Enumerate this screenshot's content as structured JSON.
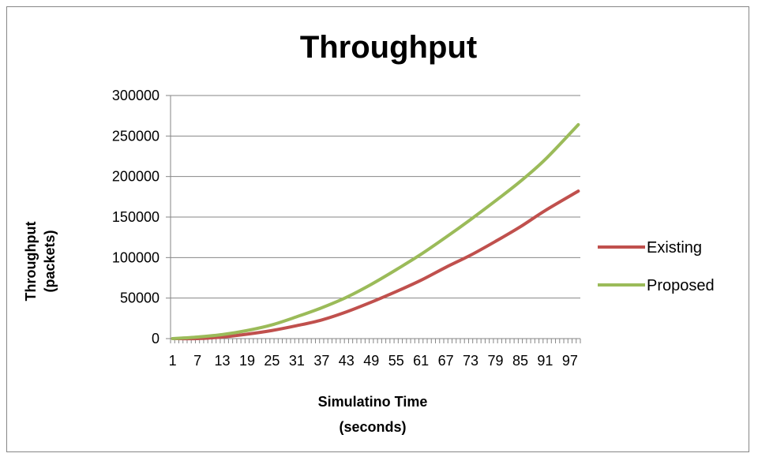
{
  "chart_data": {
    "type": "line",
    "title": "Throughput",
    "ylabel_lines": [
      "Throughput",
      "(packets)"
    ],
    "xlabel_lines": [
      "Simulatino Time",
      "(seconds)"
    ],
    "ylim": [
      0,
      300000
    ],
    "y_ticks": [
      0,
      50000,
      100000,
      150000,
      200000,
      250000,
      300000
    ],
    "x_range": [
      1,
      99
    ],
    "x_tick_labels": [
      1,
      7,
      13,
      19,
      25,
      31,
      37,
      43,
      49,
      55,
      61,
      67,
      73,
      79,
      85,
      91,
      97
    ],
    "legend_position": "right",
    "grid": "horizontal major gridlines",
    "series": [
      {
        "name": "Existing",
        "color": "#c0504d",
        "points": [
          [
            1,
            0
          ],
          [
            7,
            0
          ],
          [
            13,
            2000
          ],
          [
            19,
            5500
          ],
          [
            25,
            10000
          ],
          [
            31,
            16000
          ],
          [
            37,
            23000
          ],
          [
            43,
            33000
          ],
          [
            49,
            45000
          ],
          [
            55,
            58000
          ],
          [
            61,
            72000
          ],
          [
            67,
            88000
          ],
          [
            73,
            103000
          ],
          [
            79,
            120000
          ],
          [
            85,
            138000
          ],
          [
            91,
            158000
          ],
          [
            99,
            182000
          ]
        ]
      },
      {
        "name": "Proposed",
        "color": "#9bbb59",
        "points": [
          [
            1,
            0
          ],
          [
            7,
            2000
          ],
          [
            13,
            5000
          ],
          [
            19,
            10000
          ],
          [
            25,
            17000
          ],
          [
            31,
            27000
          ],
          [
            37,
            38000
          ],
          [
            43,
            51000
          ],
          [
            49,
            67000
          ],
          [
            55,
            85000
          ],
          [
            61,
            104000
          ],
          [
            67,
            125000
          ],
          [
            73,
            147000
          ],
          [
            79,
            170000
          ],
          [
            85,
            194000
          ],
          [
            91,
            221000
          ],
          [
            99,
            264000
          ]
        ]
      }
    ]
  }
}
